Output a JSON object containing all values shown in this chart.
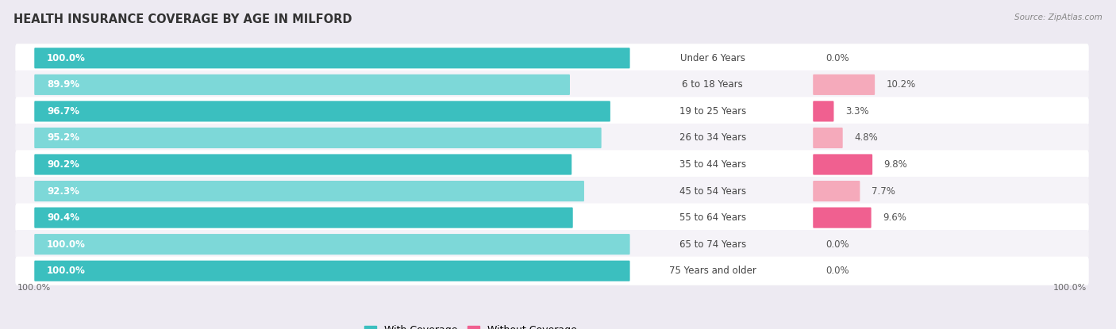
{
  "title": "HEALTH INSURANCE COVERAGE BY AGE IN MILFORD",
  "source": "Source: ZipAtlas.com",
  "categories": [
    "Under 6 Years",
    "6 to 18 Years",
    "19 to 25 Years",
    "26 to 34 Years",
    "35 to 44 Years",
    "45 to 54 Years",
    "55 to 64 Years",
    "65 to 74 Years",
    "75 Years and older"
  ],
  "with_coverage": [
    100.0,
    89.9,
    96.7,
    95.2,
    90.2,
    92.3,
    90.4,
    100.0,
    100.0
  ],
  "without_coverage": [
    0.0,
    10.2,
    3.3,
    4.8,
    9.8,
    7.7,
    9.6,
    0.0,
    0.0
  ],
  "color_with_dark": "#3BBFBF",
  "color_with_light": "#7DD8D8",
  "color_without_dark": "#F06090",
  "color_without_light": "#F5AABB",
  "bg_color": "#EDEAF2",
  "bar_bg": "#FFFFFF",
  "bar_bg_alt": "#F5F3F8",
  "title_fontsize": 10.5,
  "label_fontsize": 8.5,
  "legend_fontsize": 9,
  "value_fontsize": 8.5
}
